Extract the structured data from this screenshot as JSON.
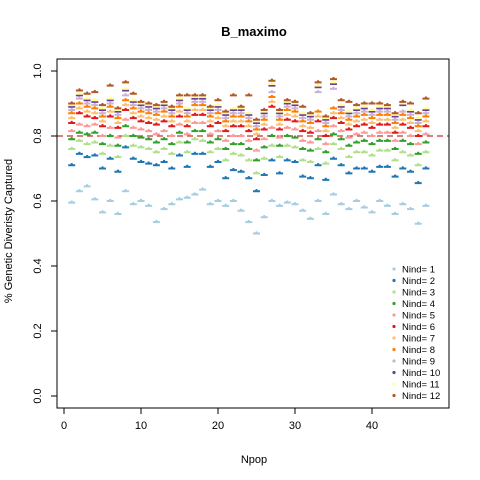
{
  "chart_data": {
    "type": "scatter",
    "title": "B_maximo",
    "xlabel": "Npop",
    "ylabel": "% Genetic Diveristy Captured",
    "xlim": [
      0,
      48
    ],
    "ylim": [
      0,
      1.05
    ],
    "xticks": [
      0,
      10,
      20,
      30,
      40
    ],
    "yticks": [
      0.0,
      0.2,
      0.4,
      0.6,
      0.8,
      1.0
    ],
    "xtick_labels": [
      "0",
      "10",
      "20",
      "30",
      "40"
    ],
    "ytick_labels": [
      "0.0",
      "0.2",
      "0.4",
      "0.6",
      "0.8",
      "1.0"
    ],
    "reference_line": {
      "y": 0.8,
      "style": "dashed",
      "color": "#c0392b"
    },
    "legend_position": "bottom-right",
    "x": [
      1,
      2,
      3,
      4,
      5,
      6,
      7,
      8,
      9,
      10,
      11,
      12,
      13,
      14,
      15,
      16,
      17,
      18,
      19,
      20,
      21,
      22,
      23,
      24,
      25,
      26,
      27,
      28,
      29,
      30,
      31,
      32,
      33,
      34,
      35,
      36,
      37,
      38,
      39,
      40,
      41,
      42,
      43,
      44,
      45,
      46,
      47
    ],
    "series": [
      {
        "name": "Nind= 1",
        "color": "#a6cee3",
        "values": [
          0.595,
          0.63,
          0.645,
          0.605,
          0.565,
          0.6,
          0.56,
          0.63,
          0.59,
          0.6,
          0.585,
          0.535,
          0.575,
          0.59,
          0.605,
          0.61,
          0.62,
          0.635,
          0.59,
          0.6,
          0.585,
          0.6,
          0.57,
          0.535,
          0.5,
          0.55,
          0.6,
          0.585,
          0.595,
          0.59,
          0.57,
          0.545,
          0.6,
          0.56,
          0.62,
          0.59,
          0.575,
          0.6,
          0.58,
          0.565,
          0.6,
          0.585,
          0.56,
          0.59,
          0.575,
          0.53,
          0.585
        ]
      },
      {
        "name": "Nind= 2",
        "color": "#1f78b4",
        "values": [
          0.71,
          0.745,
          0.735,
          0.74,
          0.7,
          0.73,
          0.69,
          0.765,
          0.73,
          0.72,
          0.715,
          0.71,
          0.72,
          0.7,
          0.74,
          0.705,
          0.745,
          0.745,
          0.705,
          0.72,
          0.67,
          0.695,
          0.69,
          0.67,
          0.63,
          0.68,
          0.725,
          0.685,
          0.725,
          0.72,
          0.675,
          0.67,
          0.71,
          0.665,
          0.73,
          0.71,
          0.685,
          0.7,
          0.7,
          0.69,
          0.705,
          0.705,
          0.675,
          0.7,
          0.69,
          0.655,
          0.7
        ]
      },
      {
        "name": "Nind= 3",
        "color": "#b2df8a",
        "values": [
          0.76,
          0.785,
          0.775,
          0.78,
          0.745,
          0.77,
          0.735,
          0.8,
          0.77,
          0.765,
          0.76,
          0.75,
          0.76,
          0.745,
          0.78,
          0.75,
          0.79,
          0.785,
          0.75,
          0.76,
          0.725,
          0.745,
          0.74,
          0.725,
          0.685,
          0.73,
          0.77,
          0.735,
          0.77,
          0.765,
          0.725,
          0.72,
          0.76,
          0.715,
          0.775,
          0.76,
          0.735,
          0.75,
          0.75,
          0.74,
          0.755,
          0.755,
          0.725,
          0.75,
          0.74,
          0.71,
          0.75
        ]
      },
      {
        "name": "Nind= 4",
        "color": "#33a02c",
        "values": [
          0.79,
          0.81,
          0.805,
          0.81,
          0.775,
          0.8,
          0.77,
          0.83,
          0.8,
          0.795,
          0.79,
          0.78,
          0.79,
          0.775,
          0.81,
          0.78,
          0.815,
          0.815,
          0.78,
          0.79,
          0.76,
          0.775,
          0.775,
          0.76,
          0.725,
          0.765,
          0.8,
          0.77,
          0.8,
          0.795,
          0.76,
          0.755,
          0.79,
          0.75,
          0.805,
          0.79,
          0.77,
          0.78,
          0.785,
          0.775,
          0.785,
          0.785,
          0.76,
          0.785,
          0.775,
          0.745,
          0.78
        ]
      },
      {
        "name": "Nind= 5",
        "color": "#fb9a99",
        "values": [
          0.815,
          0.835,
          0.83,
          0.835,
          0.8,
          0.825,
          0.795,
          0.85,
          0.825,
          0.82,
          0.815,
          0.805,
          0.815,
          0.8,
          0.835,
          0.805,
          0.84,
          0.84,
          0.805,
          0.815,
          0.785,
          0.8,
          0.8,
          0.785,
          0.755,
          0.79,
          0.825,
          0.795,
          0.825,
          0.82,
          0.785,
          0.78,
          0.815,
          0.775,
          0.83,
          0.815,
          0.795,
          0.805,
          0.81,
          0.8,
          0.81,
          0.81,
          0.785,
          0.81,
          0.8,
          0.775,
          0.805
        ]
      },
      {
        "name": "Nind= 6",
        "color": "#e31a1c",
        "values": [
          0.84,
          0.87,
          0.86,
          0.855,
          0.83,
          0.86,
          0.825,
          0.88,
          0.855,
          0.845,
          0.84,
          0.835,
          0.845,
          0.83,
          0.86,
          0.83,
          0.865,
          0.865,
          0.83,
          0.84,
          0.815,
          0.83,
          0.83,
          0.815,
          0.79,
          0.82,
          0.89,
          0.82,
          0.85,
          0.845,
          0.815,
          0.81,
          0.845,
          0.8,
          0.855,
          0.84,
          0.82,
          0.83,
          0.835,
          0.825,
          0.835,
          0.835,
          0.81,
          0.835,
          0.825,
          0.8,
          0.83
        ]
      },
      {
        "name": "Nind= 7",
        "color": "#fdbf6f",
        "values": [
          0.855,
          0.885,
          0.875,
          0.87,
          0.845,
          0.875,
          0.84,
          0.895,
          0.87,
          0.86,
          0.855,
          0.85,
          0.86,
          0.845,
          0.875,
          0.845,
          0.88,
          0.88,
          0.845,
          0.855,
          0.83,
          0.845,
          0.845,
          0.83,
          0.805,
          0.835,
          0.905,
          0.835,
          0.865,
          0.86,
          0.83,
          0.825,
          0.86,
          0.815,
          0.87,
          0.855,
          0.835,
          0.845,
          0.85,
          0.84,
          0.85,
          0.85,
          0.825,
          0.85,
          0.84,
          0.815,
          0.845
        ]
      },
      {
        "name": "Nind= 8",
        "color": "#ff7f00",
        "values": [
          0.87,
          0.9,
          0.89,
          0.885,
          0.86,
          0.89,
          0.855,
          0.91,
          0.885,
          0.875,
          0.87,
          0.865,
          0.875,
          0.86,
          0.89,
          0.86,
          0.895,
          0.895,
          0.86,
          0.87,
          0.845,
          0.86,
          0.86,
          0.845,
          0.82,
          0.85,
          0.92,
          0.85,
          0.88,
          0.875,
          0.845,
          0.84,
          0.875,
          0.83,
          0.885,
          0.87,
          0.85,
          0.86,
          0.865,
          0.855,
          0.865,
          0.865,
          0.84,
          0.865,
          0.855,
          0.83,
          0.86
        ]
      },
      {
        "name": "Nind= 9",
        "color": "#cab2d6",
        "values": [
          0.88,
          0.915,
          0.9,
          0.895,
          0.87,
          0.9,
          0.865,
          0.925,
          0.895,
          0.885,
          0.88,
          0.875,
          0.885,
          0.87,
          0.9,
          0.87,
          0.905,
          0.905,
          0.87,
          0.88,
          0.855,
          0.87,
          0.87,
          0.855,
          0.83,
          0.86,
          0.935,
          0.86,
          0.89,
          0.885,
          0.855,
          0.85,
          0.935,
          0.84,
          0.945,
          0.88,
          0.86,
          0.87,
          0.875,
          0.865,
          0.875,
          0.875,
          0.85,
          0.875,
          0.865,
          0.84,
          0.87
        ]
      },
      {
        "name": "Nind= 10",
        "color": "#6a3d9a",
        "values": [
          0.89,
          0.925,
          0.91,
          0.905,
          0.88,
          0.91,
          0.875,
          0.94,
          0.905,
          0.895,
          0.89,
          0.885,
          0.895,
          0.88,
          0.91,
          0.88,
          0.915,
          0.915,
          0.88,
          0.89,
          0.865,
          0.88,
          0.88,
          0.865,
          0.84,
          0.87,
          0.955,
          0.87,
          0.9,
          0.895,
          0.865,
          0.86,
          0.95,
          0.85,
          0.96,
          0.89,
          0.87,
          0.88,
          0.885,
          0.875,
          0.885,
          0.885,
          0.86,
          0.895,
          0.875,
          0.85,
          0.88
        ]
      },
      {
        "name": "Nind= 11",
        "color": "#ffff99",
        "values": [
          0.895,
          0.93,
          0.915,
          0.91,
          0.885,
          0.915,
          0.88,
          0.945,
          0.91,
          0.9,
          0.895,
          0.89,
          0.9,
          0.885,
          0.915,
          0.885,
          0.92,
          0.92,
          0.885,
          0.895,
          0.87,
          0.885,
          0.885,
          0.87,
          0.845,
          0.875,
          0.96,
          0.875,
          0.905,
          0.9,
          0.87,
          0.865,
          0.955,
          0.855,
          0.965,
          0.895,
          0.875,
          0.885,
          0.89,
          0.88,
          0.89,
          0.89,
          0.865,
          0.9,
          0.88,
          0.855,
          0.885
        ]
      },
      {
        "name": "Nind= 12",
        "color": "#b15928",
        "values": [
          0.9,
          0.94,
          0.93,
          0.935,
          0.895,
          0.955,
          0.885,
          0.965,
          0.93,
          0.905,
          0.9,
          0.895,
          0.905,
          0.89,
          0.925,
          0.925,
          0.925,
          0.925,
          0.89,
          0.91,
          0.875,
          0.925,
          0.89,
          0.925,
          0.85,
          0.88,
          0.97,
          0.88,
          0.91,
          0.905,
          0.89,
          0.87,
          0.965,
          0.86,
          0.975,
          0.91,
          0.905,
          0.895,
          0.9,
          0.9,
          0.9,
          0.895,
          0.87,
          0.905,
          0.9,
          0.87,
          0.915
        ]
      }
    ]
  }
}
